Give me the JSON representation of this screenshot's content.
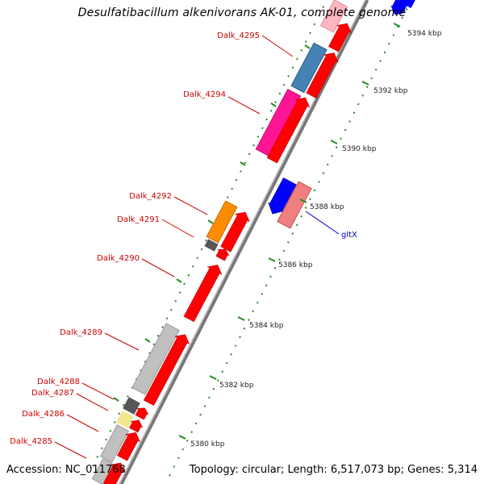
{
  "title": "Desulfatibacillum alkenivorans AK-01, complete genome",
  "footer": {
    "accession": "Accession: NC_011768",
    "summary": "Topology: circular; Length: 6,517,073 bp; Genes: 5,314"
  },
  "colors": {
    "forward_gene": "#ff0000",
    "reverse_gene": "#0000ff",
    "backbone": "#777777",
    "tick": "#228b22",
    "label_red": "#cc0000",
    "label_blue": "#0000cc"
  },
  "scale_labels": [
    "5380 kbp",
    "5382 kbp",
    "5384 kbp",
    "5386 kbp",
    "5388 kbp",
    "5390 kbp",
    "5392 kbp",
    "5394 kbp"
  ],
  "gene_labels": [
    {
      "text": "Dalk_4295",
      "color": "label_red"
    },
    {
      "text": "Dalk_4294",
      "color": "label_red"
    },
    {
      "text": "Dalk_4292",
      "color": "label_red"
    },
    {
      "text": "Dalk_4291",
      "color": "label_red"
    },
    {
      "text": "Dalk_4290",
      "color": "label_red"
    },
    {
      "text": "Dalk_4289",
      "color": "label_red"
    },
    {
      "text": "Dalk_4288",
      "color": "label_red"
    },
    {
      "text": "Dalk_4287",
      "color": "label_red"
    },
    {
      "text": "Dalk_4286",
      "color": "label_red"
    },
    {
      "text": "Dalk_4285",
      "color": "label_red"
    },
    {
      "text": "gltX",
      "color": "label_blue"
    }
  ]
}
